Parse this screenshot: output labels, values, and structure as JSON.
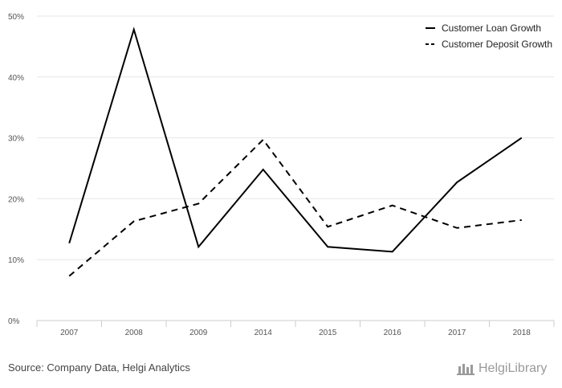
{
  "chart_data": {
    "type": "line",
    "title": "",
    "xlabel": "",
    "ylabel": "",
    "categories": [
      "2007",
      "2008",
      "2009",
      "2014",
      "2015",
      "2016",
      "2017",
      "2018"
    ],
    "y_ticks": [
      "0%",
      "10%",
      "20%",
      "30%",
      "40%",
      "50%"
    ],
    "ylim": [
      0,
      50
    ],
    "grid": true,
    "legend_position": "top-right",
    "series": [
      {
        "name": "Customer Loan Growth",
        "style": "solid",
        "color": "#000000",
        "values": [
          12.7,
          47.8,
          12.1,
          24.8,
          12.1,
          11.3,
          22.7,
          30.0
        ]
      },
      {
        "name": "Customer Deposit Growth",
        "style": "dashed",
        "color": "#000000",
        "values": [
          7.3,
          16.3,
          19.2,
          29.7,
          15.4,
          18.9,
          15.2,
          16.5
        ]
      }
    ]
  },
  "footer": {
    "source": "Source: Company Data, Helgi Analytics",
    "brand": "HelgiLibrary"
  },
  "colors": {
    "grid": "#e6e6e6",
    "axis": "#cccccc",
    "line": "#000000",
    "brand": "#9a9a9a"
  }
}
